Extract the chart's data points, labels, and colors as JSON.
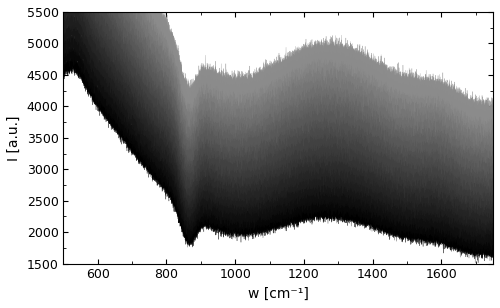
{
  "x_min": 500,
  "x_max": 1750,
  "y_min": 1500,
  "y_max": 5500,
  "xlabel": "w [cm⁻¹]",
  "ylabel": "I [a.u.]",
  "xticks": [
    600,
    800,
    1000,
    1200,
    1400,
    1600
  ],
  "yticks": [
    1500,
    2000,
    2500,
    3000,
    3500,
    4000,
    4500,
    5000,
    5500
  ],
  "n_groups": 20,
  "n_per_group": 10,
  "seed": 42,
  "background_color": "#ffffff",
  "figsize": [
    5.0,
    3.08
  ],
  "dpi": 100
}
